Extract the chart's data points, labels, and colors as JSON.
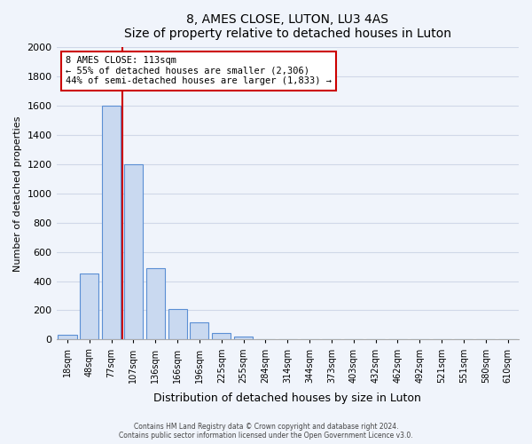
{
  "title": "8, AMES CLOSE, LUTON, LU3 4AS",
  "subtitle": "Size of property relative to detached houses in Luton",
  "xlabel": "Distribution of detached houses by size in Luton",
  "ylabel": "Number of detached properties",
  "bar_color": "#c9d9f0",
  "bar_edge_color": "#5b8fd4",
  "categories": [
    "18sqm",
    "48sqm",
    "77sqm",
    "107sqm",
    "136sqm",
    "166sqm",
    "196sqm",
    "225sqm",
    "255sqm",
    "284sqm",
    "314sqm",
    "344sqm",
    "373sqm",
    "403sqm",
    "432sqm",
    "462sqm",
    "492sqm",
    "521sqm",
    "551sqm",
    "580sqm",
    "610sqm"
  ],
  "values": [
    30,
    455,
    1600,
    1200,
    490,
    210,
    120,
    45,
    20,
    0,
    0,
    0,
    0,
    0,
    0,
    0,
    0,
    0,
    0,
    0,
    0
  ],
  "ylim": [
    0,
    2000
  ],
  "yticks": [
    0,
    200,
    400,
    600,
    800,
    1000,
    1200,
    1400,
    1600,
    1800,
    2000
  ],
  "property_line_label": "8 AMES CLOSE: 113sqm",
  "annotation_line1": "← 55% of detached houses are smaller (2,306)",
  "annotation_line2": "44% of semi-detached houses are larger (1,833) →",
  "annotation_box_color": "#ffffff",
  "annotation_box_edge_color": "#cc0000",
  "vline_color": "#cc0000",
  "vline_x": 2.5,
  "footer1": "Contains HM Land Registry data © Crown copyright and database right 2024.",
  "footer2": "Contains public sector information licensed under the Open Government Licence v3.0.",
  "grid_color": "#d0d8e8",
  "bg_color": "#f0f4fb"
}
